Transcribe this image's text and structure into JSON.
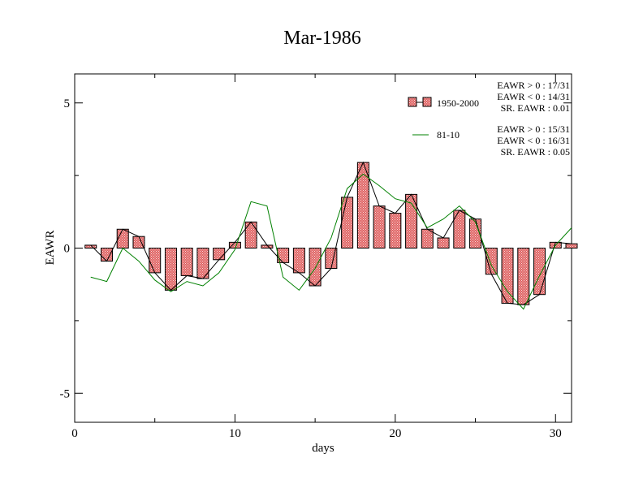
{
  "chart_data": {
    "type": "bar",
    "title": "Mar-1986",
    "xlabel": "days",
    "ylabel": "EAWR",
    "xlim": [
      0,
      31
    ],
    "ylim": [
      -6,
      6
    ],
    "x_ticks": [
      0,
      10,
      20,
      30
    ],
    "y_ticks": [
      -5,
      0,
      5
    ],
    "grid": false,
    "legend_position": "top-right",
    "x": [
      1,
      2,
      3,
      4,
      5,
      6,
      7,
      8,
      9,
      10,
      11,
      12,
      13,
      14,
      15,
      16,
      17,
      18,
      19,
      20,
      21,
      22,
      23,
      24,
      25,
      26,
      27,
      28,
      29,
      30,
      31
    ],
    "series": [
      {
        "name": "1950-2000",
        "kind": "bar",
        "values": [
          0.1,
          -0.45,
          0.65,
          0.4,
          -0.85,
          -1.45,
          -0.95,
          -1.05,
          -0.4,
          0.2,
          0.9,
          0.1,
          -0.5,
          -0.85,
          -1.3,
          -0.7,
          1.75,
          2.95,
          1.45,
          1.2,
          1.85,
          0.65,
          0.35,
          1.3,
          1.0,
          -0.9,
          -1.9,
          -1.95,
          -1.6,
          0.2,
          0.15
        ],
        "color": "#e06666"
      },
      {
        "name": "81-10",
        "kind": "line",
        "values": [
          -1.0,
          -1.15,
          0.0,
          -0.45,
          -1.1,
          -1.5,
          -1.15,
          -1.3,
          -0.85,
          -0.05,
          1.6,
          1.45,
          -1.0,
          -1.45,
          -0.7,
          0.35,
          2.05,
          2.55,
          2.15,
          1.7,
          1.55,
          0.7,
          1.0,
          1.45,
          0.9,
          -0.6,
          -1.5,
          -2.1,
          -0.95,
          0.1,
          0.7
        ],
        "color": "#008000"
      }
    ],
    "stats": {
      "1950-2000": [
        "EAWR > 0 : 17/31",
        "EAWR < 0 : 14/31",
        "SR. EAWR :  0.01"
      ],
      "81-10": [
        "EAWR > 0 : 15/31",
        "EAWR < 0 : 16/31",
        "SR. EAWR :  0.05"
      ]
    }
  }
}
